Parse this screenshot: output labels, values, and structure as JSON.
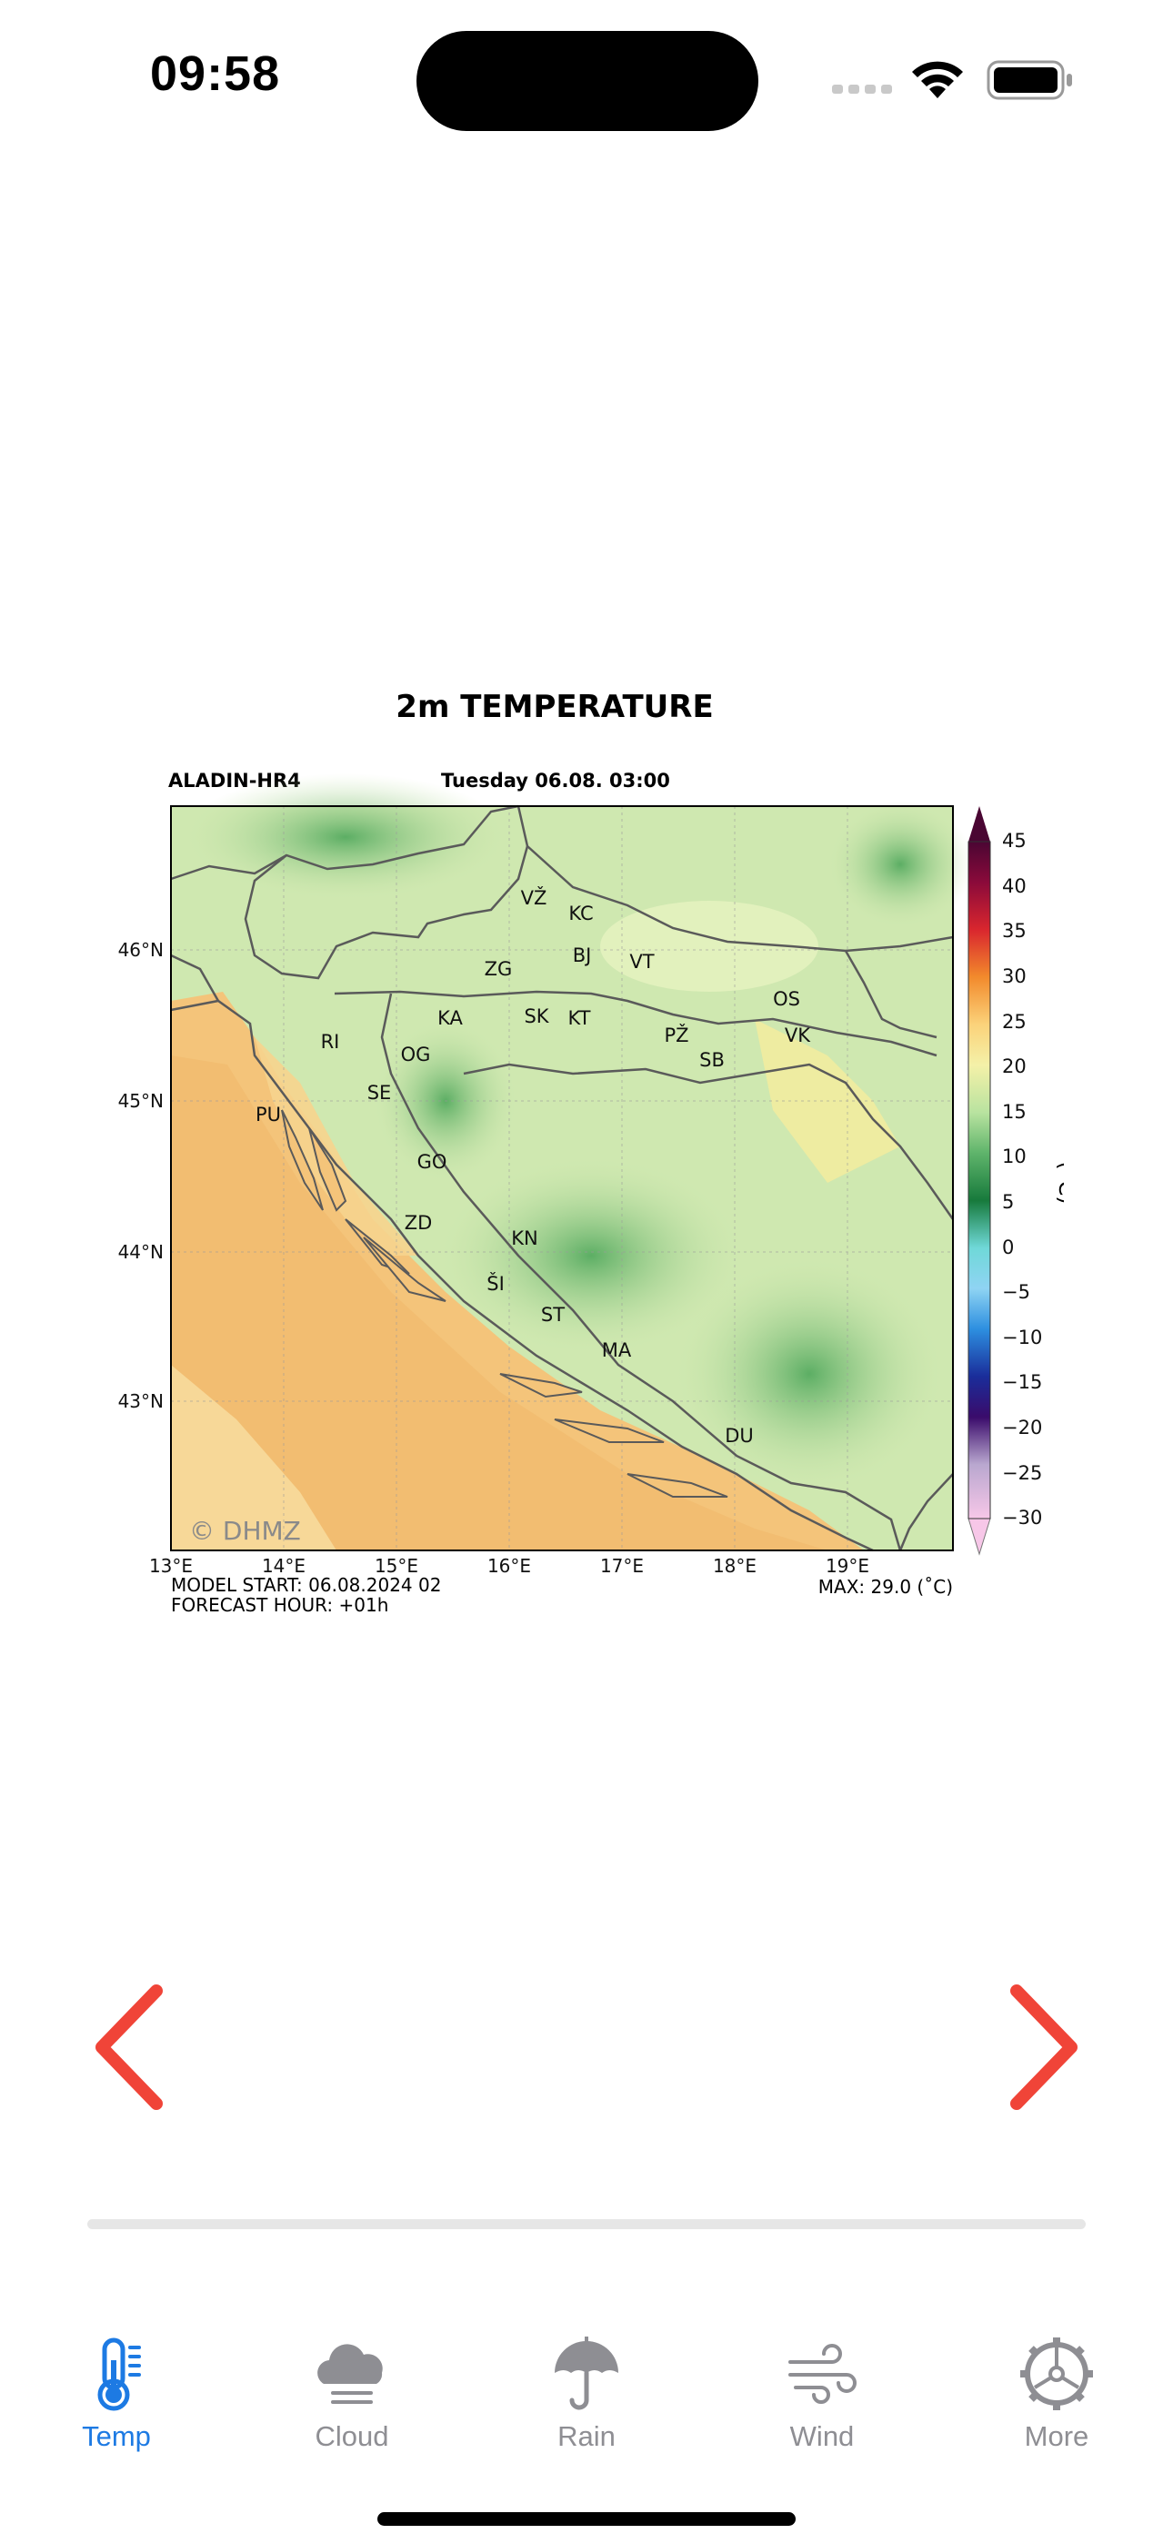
{
  "status_bar": {
    "time": "09:58"
  },
  "map": {
    "title": "2m TEMPERATURE",
    "model": "ALADIN-HR4",
    "valid_time": "Tuesday 06.08. 03:00",
    "model_start": "MODEL START: 06.08.2024 02",
    "forecast_hour": "FORECAST HOUR: +01h",
    "max_label": "MAX: 29.0 (˚C)",
    "watermark": "© DHMZ",
    "unit_label": "(˚C)",
    "lon_ticks": [
      "13°E",
      "14°E",
      "15°E",
      "16°E",
      "17°E",
      "18°E",
      "19°E"
    ],
    "lat_ticks": [
      "46°N",
      "45°N",
      "44°N",
      "43°N"
    ],
    "colorbar_ticks": [
      "45",
      "40",
      "35",
      "30",
      "25",
      "20",
      "15",
      "10",
      "5",
      "0",
      "−5",
      "−10",
      "−15",
      "−20",
      "−25",
      "−30"
    ],
    "cities": [
      "VŽ",
      "KC",
      "BJ",
      "VT",
      "ZG",
      "KA",
      "SK",
      "KT",
      "PŽ",
      "OS",
      "VK",
      "SB",
      "RI",
      "OG",
      "SE",
      "PU",
      "GO",
      "ZD",
      "KN",
      "ŠI",
      "ST",
      "MA",
      "DU"
    ]
  },
  "navigation": {
    "prev_icon": "chevron-left-icon",
    "next_icon": "chevron-right-icon",
    "accent_color": "#f04438"
  },
  "progress": {
    "value": 0
  },
  "tabs": [
    {
      "label": "Temp",
      "icon": "thermometer-icon",
      "active": true
    },
    {
      "label": "Cloud",
      "icon": "cloud-icon",
      "active": false
    },
    {
      "label": "Rain",
      "icon": "umbrella-icon",
      "active": false
    },
    {
      "label": "Wind",
      "icon": "wind-icon",
      "active": false
    },
    {
      "label": "More",
      "icon": "gear-icon",
      "active": false
    }
  ],
  "colors": {
    "active_tab": "#1d7ae3",
    "inactive_tab": "#8e8e93"
  }
}
